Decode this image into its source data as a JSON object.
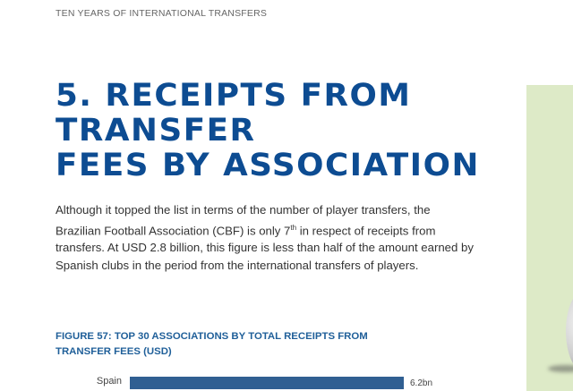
{
  "header": "TEN YEARS OF INTERNATIONAL TRANSFERS",
  "title_line1": "5. RECEIPTS FROM TRANSFER",
  "title_line2": "FEES BY ASSOCIATION",
  "paragraph": {
    "part1": "Although it topped the list in terms of the number of player transfers, the Brazilian Football Association (CBF) is only 7",
    "sup": "th",
    "part2": " in respect of receipts from transfers. At USD 2.8 billion, this figure is less than half of the amount earned by Spanish clubs in the period from the international transfers of players."
  },
  "figure": {
    "title_line1": "FIGURE 57: TOP 30 ASSOCIATIONS BY TOTAL RECEIPTS FROM",
    "title_line2": "TRANSFER FEES (USD)"
  },
  "chart_data": {
    "type": "bar",
    "orientation": "horizontal",
    "categories": [
      "Spain"
    ],
    "values": [
      6.2
    ],
    "value_labels": [
      "6.2bn"
    ],
    "color": "#305f92"
  }
}
